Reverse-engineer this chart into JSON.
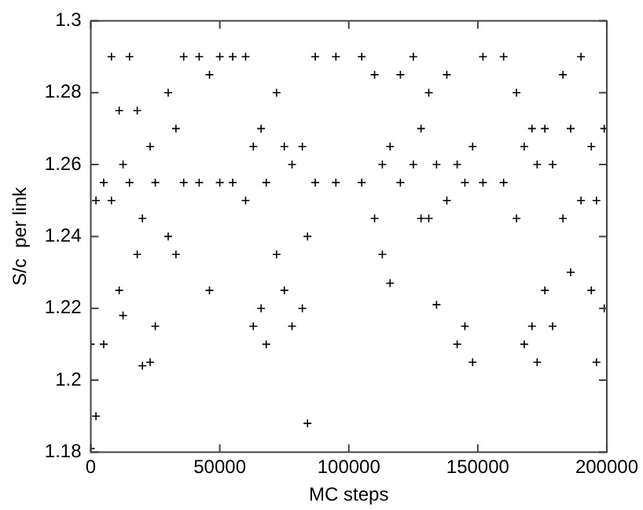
{
  "chart_data": {
    "type": "scatter",
    "xlabel": "MC steps",
    "ylabel": "S/c  per link",
    "marker": "cross",
    "grid": false,
    "legend": false,
    "xlim": [
      0,
      200000
    ],
    "xticks": [
      0,
      50000,
      100000,
      150000,
      200000
    ],
    "ylim": [
      1.18,
      1.3
    ],
    "yticks": [
      1.18,
      1.2,
      1.22,
      1.24,
      1.26,
      1.28,
      1.3
    ],
    "series": [
      {
        "color": "#000000",
        "x": [
          0,
          0,
          2000,
          2000,
          5000,
          5000,
          8000,
          8000,
          11000,
          11000,
          12500,
          12500,
          15000,
          15000,
          18000,
          18000,
          20000,
          20000,
          23000,
          23000,
          25000,
          25000,
          30000,
          30000,
          33000,
          33000,
          36000,
          36000,
          42000,
          42000,
          46000,
          46000,
          50000,
          50000,
          55000,
          55000,
          60000,
          60000,
          63000,
          63000,
          66000,
          66000,
          68000,
          68000,
          72000,
          72000,
          75000,
          75000,
          78000,
          78000,
          82000,
          82000,
          84000,
          84000,
          87000,
          87000,
          95000,
          95000,
          105000,
          105000,
          110000,
          110000,
          113000,
          113000,
          116000,
          116000,
          120000,
          120000,
          125000,
          125000,
          128000,
          128000,
          131000,
          131000,
          134000,
          134000,
          138000,
          138000,
          142000,
          142000,
          145000,
          145000,
          148000,
          148000,
          152000,
          152000,
          160000,
          160000,
          165000,
          165000,
          168000,
          168000,
          171000,
          171000,
          173000,
          173000,
          176000,
          176000,
          179000,
          179000,
          183000,
          183000,
          186000,
          186000,
          190000,
          190000,
          194000,
          194000,
          196000,
          196000,
          199000,
          199000
        ],
        "values": [
          1.21,
          1.181,
          1.25,
          1.19,
          1.255,
          1.21,
          1.29,
          1.25,
          1.275,
          1.225,
          1.26,
          1.218,
          1.29,
          1.255,
          1.275,
          1.235,
          1.245,
          1.204,
          1.265,
          1.205,
          1.255,
          1.215,
          1.28,
          1.24,
          1.27,
          1.235,
          1.29,
          1.255,
          1.29,
          1.255,
          1.285,
          1.225,
          1.29,
          1.255,
          1.29,
          1.255,
          1.29,
          1.25,
          1.265,
          1.215,
          1.27,
          1.22,
          1.255,
          1.21,
          1.28,
          1.235,
          1.265,
          1.225,
          1.26,
          1.215,
          1.265,
          1.22,
          1.24,
          1.188,
          1.29,
          1.255,
          1.29,
          1.255,
          1.29,
          1.255,
          1.285,
          1.245,
          1.26,
          1.235,
          1.265,
          1.227,
          1.285,
          1.255,
          1.29,
          1.26,
          1.27,
          1.245,
          1.28,
          1.245,
          1.26,
          1.221,
          1.285,
          1.25,
          1.26,
          1.21,
          1.255,
          1.215,
          1.265,
          1.205,
          1.29,
          1.255,
          1.29,
          1.255,
          1.28,
          1.245,
          1.265,
          1.21,
          1.27,
          1.215,
          1.26,
          1.205,
          1.27,
          1.225,
          1.26,
          1.215,
          1.285,
          1.245,
          1.27,
          1.23,
          1.29,
          1.25,
          1.265,
          1.225,
          1.25,
          1.205,
          1.27,
          1.22
        ]
      }
    ]
  }
}
